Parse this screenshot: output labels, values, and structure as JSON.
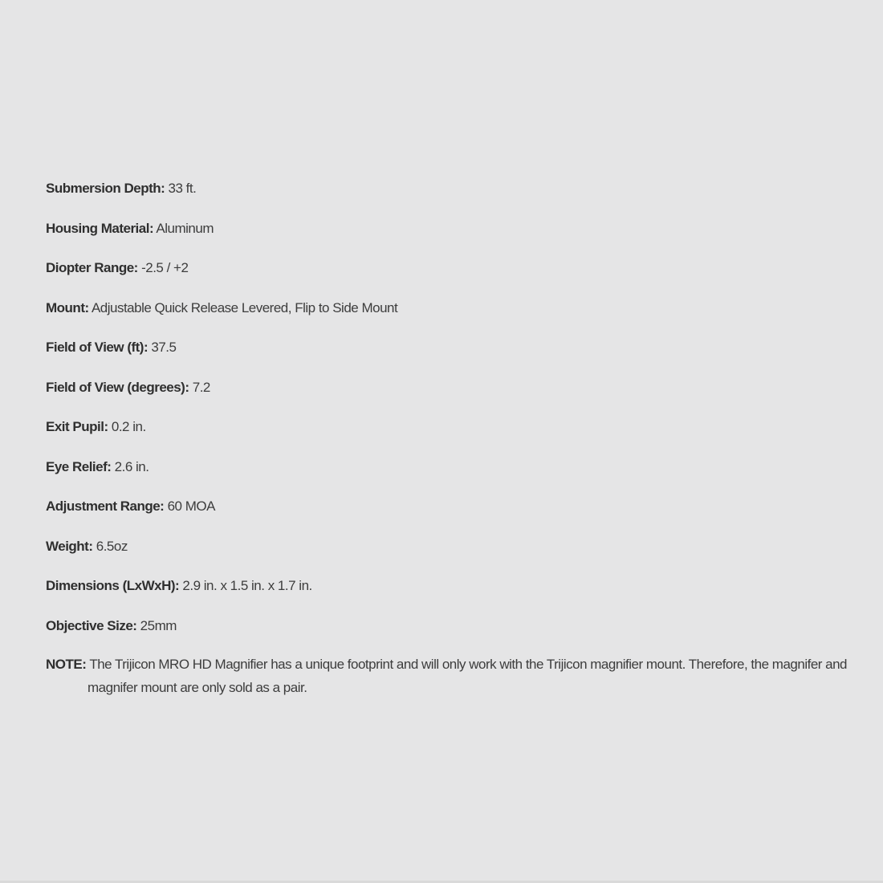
{
  "colors": {
    "background": "#e5e5e6",
    "text": "#3d3d3d",
    "label_text": "#2f2f2f"
  },
  "specs": [
    {
      "label": "Submersion Depth:",
      "value": "33 ft."
    },
    {
      "label": "Housing Material:",
      "value": "Aluminum"
    },
    {
      "label": "Diopter Range:",
      "value": "-2.5 / +2"
    },
    {
      "label": "Mount:",
      "value": "Adjustable Quick Release Levered, Flip to Side Mount"
    },
    {
      "label": "Field of View (ft):",
      "value": "37.5"
    },
    {
      "label": "Field of View (degrees):",
      "value": "7.2"
    },
    {
      "label": "Exit Pupil:",
      "value": "0.2 in."
    },
    {
      "label": "Eye Relief:",
      "value": "2.6 in."
    },
    {
      "label": "Adjustment Range:",
      "value": "60 MOA"
    },
    {
      "label": "Weight:",
      "value": "6.5oz"
    },
    {
      "label": "Dimensions (LxWxH):",
      "value": "2.9 in. x 1.5 in. x 1.7 in."
    },
    {
      "label": "Objective Size:",
      "value": "25mm"
    }
  ],
  "note": {
    "label": "NOTE:",
    "text": "The Trijicon MRO HD Magnifier has a unique footprint and will only work with the Trijicon magnifier mount. Therefore, the magnifer and  magnifer mount are only sold as a pair."
  }
}
